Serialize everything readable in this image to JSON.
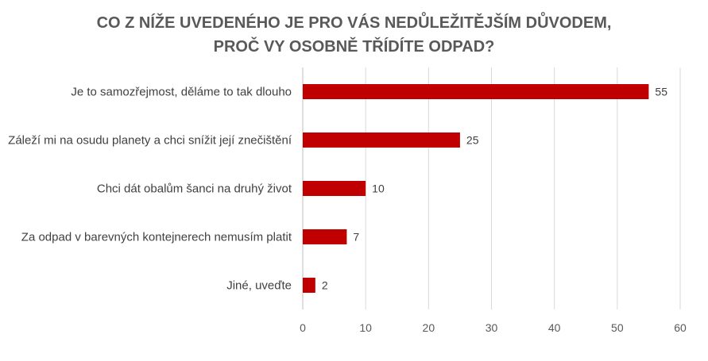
{
  "chart_data": {
    "type": "bar",
    "orientation": "horizontal",
    "title_lines": [
      "CO Z NÍŽE UVEDENÉHO JE PRO VÁS NEDŮLEŽITĚJŠÍM DŮVODEM,",
      "PROČ VY OSOBNĚ TŘÍDÍTE ODPAD?"
    ],
    "categories": [
      "Je to samozřejmost, děláme to tak dlouho",
      "Záleží mi na osudu planety a chci snížit její znečištění",
      "Chci dát obalům šanci na druhý život",
      "Za odpad v barevných kontejnerech nemusím platit",
      "Jiné, uveďte"
    ],
    "values": [
      55,
      25,
      10,
      7,
      2
    ],
    "xlim": [
      0,
      60
    ],
    "xticks": [
      0,
      10,
      20,
      30,
      40,
      50,
      60
    ],
    "grid": true,
    "bar_color": "#c00000"
  }
}
